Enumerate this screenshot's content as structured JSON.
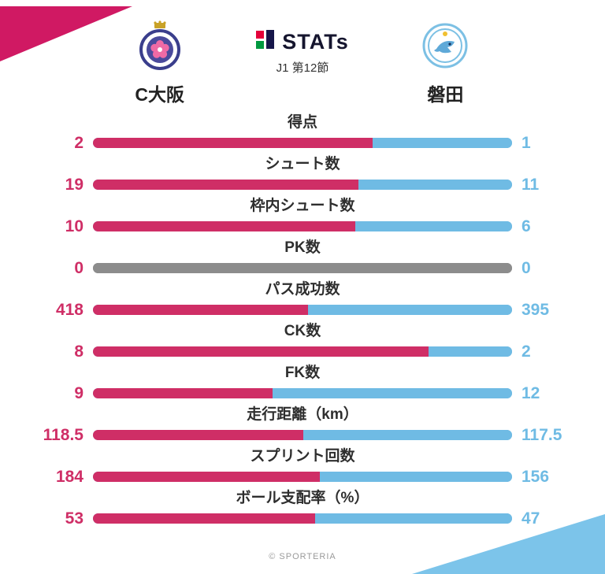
{
  "colors": {
    "home": "#cf2e66",
    "away": "#6fbbe4",
    "neutral": "#8c8c8c",
    "corner_pink": "#d01963",
    "corner_blue": "#7cc4ea"
  },
  "header": {
    "logo_text": "STATs",
    "round_label": "J1 第12節",
    "home_team": "C大阪",
    "away_team": "磐田"
  },
  "footer": {
    "credit": "© SPORTERIA"
  },
  "chart_data": {
    "type": "bar",
    "title": "STATs J1 第12節 C大阪 vs 磐田",
    "orientation": "horizontal paired comparison bars (home share left in pink, away share right in blue, gray when 0-0)",
    "categories": [
      "得点",
      "シュート数",
      "枠内シュート数",
      "PK数",
      "パス成功数",
      "CK数",
      "FK数",
      "走行距離（km）",
      "スプリント回数",
      "ボール支配率（%）"
    ],
    "series": [
      {
        "name": "C大阪",
        "color": "#cf2e66",
        "values": [
          2,
          19,
          10,
          0,
          418,
          8,
          9,
          118.5,
          184,
          53
        ]
      },
      {
        "name": "磐田",
        "color": "#6fbbe4",
        "values": [
          1,
          11,
          6,
          0,
          395,
          2,
          12,
          117.5,
          156,
          47
        ]
      }
    ],
    "legend_position": "team names above columns",
    "grid": false
  },
  "stats": [
    {
      "label": "得点",
      "home_value": "2",
      "away_value": "1",
      "home_pct": 66.7,
      "neutral": false
    },
    {
      "label": "シュート数",
      "home_value": "19",
      "away_value": "11",
      "home_pct": 63.3,
      "neutral": false
    },
    {
      "label": "枠内シュート数",
      "home_value": "10",
      "away_value": "6",
      "home_pct": 62.5,
      "neutral": false
    },
    {
      "label": "PK数",
      "home_value": "0",
      "away_value": "0",
      "home_pct": 50,
      "neutral": true
    },
    {
      "label": "パス成功数",
      "home_value": "418",
      "away_value": "395",
      "home_pct": 51.4,
      "neutral": false
    },
    {
      "label": "CK数",
      "home_value": "8",
      "away_value": "2",
      "home_pct": 80,
      "neutral": false
    },
    {
      "label": "FK数",
      "home_value": "9",
      "away_value": "12",
      "home_pct": 42.9,
      "neutral": false
    },
    {
      "label": "走行距離（km）",
      "home_value": "118.5",
      "away_value": "117.5",
      "home_pct": 50.2,
      "neutral": false
    },
    {
      "label": "スプリント回数",
      "home_value": "184",
      "away_value": "156",
      "home_pct": 54.1,
      "neutral": false
    },
    {
      "label": "ボール支配率（%）",
      "home_value": "53",
      "away_value": "47",
      "home_pct": 53,
      "neutral": false
    }
  ]
}
